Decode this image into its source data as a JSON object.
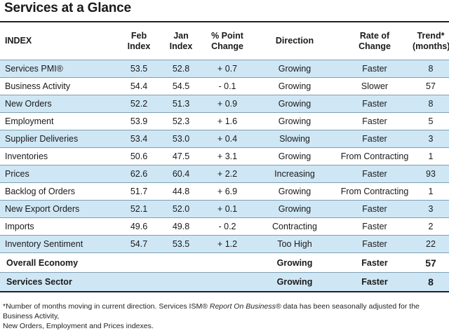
{
  "title": "Services at a Glance",
  "colors": {
    "band": "#cfe7f5",
    "rule": "#7f9fb2"
  },
  "headers": {
    "index": "INDEX",
    "feb": "Feb",
    "feb2": "Index",
    "jan": "Jan",
    "jan2": "Index",
    "chg": "% Point",
    "chg2": "Change",
    "dir": "Direction",
    "rate": "Rate of",
    "rate2": "Change",
    "trend": "Trend*",
    "trend2": "(months)"
  },
  "rows": [
    {
      "name": "Services PMI®",
      "feb": "53.5",
      "jan": "52.8",
      "chg": "+ 0.7",
      "dir": "Growing",
      "rate": "Faster",
      "trend": "8"
    },
    {
      "name": "Business Activity",
      "feb": "54.4",
      "jan": "54.5",
      "chg": "- 0.1",
      "dir": "Growing",
      "rate": "Slower",
      "trend": "57"
    },
    {
      "name": "New Orders",
      "feb": "52.2",
      "jan": "51.3",
      "chg": "+ 0.9",
      "dir": "Growing",
      "rate": "Faster",
      "trend": "8"
    },
    {
      "name": "Employment",
      "feb": "53.9",
      "jan": "52.3",
      "chg": "+ 1.6",
      "dir": "Growing",
      "rate": "Faster",
      "trend": "5"
    },
    {
      "name": "Supplier Deliveries",
      "feb": "53.4",
      "jan": "53.0",
      "chg": "+ 0.4",
      "dir": "Slowing",
      "rate": "Faster",
      "trend": "3"
    },
    {
      "name": "Inventories",
      "feb": "50.6",
      "jan": "47.5",
      "chg": "+ 3.1",
      "dir": "Growing",
      "rate": "From Contracting",
      "trend": "1"
    },
    {
      "name": "Prices",
      "feb": "62.6",
      "jan": "60.4",
      "chg": "+ 2.2",
      "dir": "Increasing",
      "rate": "Faster",
      "trend": "93"
    },
    {
      "name": "Backlog of Orders",
      "feb": "51.7",
      "jan": "44.8",
      "chg": "+ 6.9",
      "dir": "Growing",
      "rate": "From Contracting",
      "trend": "1"
    },
    {
      "name": "New Export Orders",
      "feb": "52.1",
      "jan": "52.0",
      "chg": "+ 0.1",
      "dir": "Growing",
      "rate": "Faster",
      "trend": "3"
    },
    {
      "name": "Imports",
      "feb": "49.6",
      "jan": "49.8",
      "chg": "- 0.2",
      "dir": "Contracting",
      "rate": "Faster",
      "trend": "2"
    },
    {
      "name": "Inventory Sentiment",
      "feb": "54.7",
      "jan": "53.5",
      "chg": "+ 1.2",
      "dir": "Too High",
      "rate": "Faster",
      "trend": "22"
    }
  ],
  "totals": [
    {
      "name": "Overall Economy",
      "dir": "Growing",
      "rate": "Faster",
      "trend": "57"
    },
    {
      "name": "Services Sector",
      "dir": "Growing",
      "rate": "Faster",
      "trend": "8"
    }
  ],
  "footnote": {
    "part1": "*Number of months moving in current direction. Services ISM® ",
    "italic": "Report On Business®",
    "part2": " data has been seasonally adjusted for the Business Activity,",
    "line2": "New Orders, Employment and Prices indexes."
  }
}
